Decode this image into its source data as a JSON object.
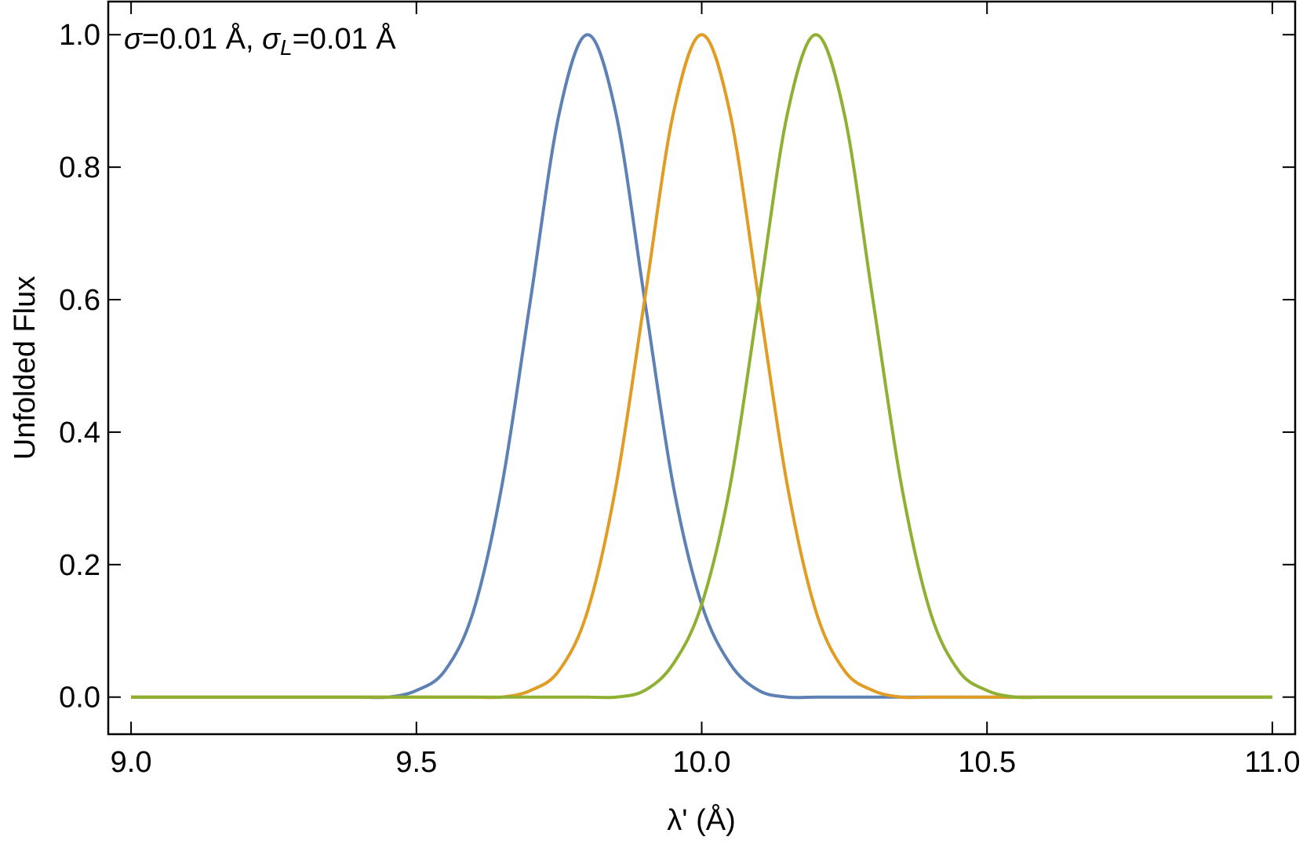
{
  "chart_data": {
    "type": "line",
    "xlabel": "λ' (Å)",
    "ylabel": "Unfolded Flux",
    "annotation": [
      "σ",
      "=0.01 Å, ",
      "σ",
      "L",
      "=0.01 Å"
    ],
    "x": [
      9.0,
      9.05,
      9.1,
      9.15,
      9.2,
      9.25,
      9.3,
      9.35,
      9.4,
      9.45,
      9.5,
      9.55,
      9.6,
      9.65,
      9.7,
      9.75,
      9.8,
      9.85,
      9.9,
      9.95,
      10.0,
      10.05,
      10.1,
      10.15,
      10.2,
      10.25,
      10.3,
      10.35,
      10.4,
      10.45,
      10.5,
      10.55,
      10.6,
      10.65,
      10.7,
      10.75,
      10.8,
      10.85,
      10.9,
      10.95,
      11.0
    ],
    "series": [
      {
        "color": "#5e81b5",
        "values": [
          0,
          0,
          0,
          0,
          0,
          0,
          0,
          0,
          0,
          0,
          0.01,
          0.04,
          0.13,
          0.32,
          0.6,
          0.88,
          1,
          0.88,
          0.6,
          0.32,
          0.14,
          0.05,
          0.01,
          0,
          0,
          0,
          0,
          0,
          0,
          0,
          0,
          0,
          0,
          0,
          0,
          0,
          0,
          0,
          0,
          0,
          0
        ]
      },
      {
        "color": "#e19c24",
        "values": [
          0,
          0,
          0,
          0,
          0,
          0,
          0,
          0,
          0,
          0,
          0,
          0,
          0,
          0,
          0.01,
          0.04,
          0.13,
          0.32,
          0.6,
          0.88,
          1,
          0.88,
          0.6,
          0.32,
          0.13,
          0.04,
          0.01,
          0,
          0,
          0,
          0,
          0,
          0,
          0,
          0,
          0,
          0,
          0,
          0,
          0,
          0
        ]
      },
      {
        "color": "#8fb032",
        "values": [
          0,
          0,
          0,
          0,
          0,
          0,
          0,
          0,
          0,
          0,
          0,
          0,
          0,
          0,
          0,
          0,
          0,
          0,
          0.01,
          0.05,
          0.14,
          0.32,
          0.6,
          0.88,
          1,
          0.88,
          0.6,
          0.32,
          0.13,
          0.04,
          0.01,
          0,
          0,
          0,
          0,
          0,
          0,
          0,
          0,
          0,
          0
        ]
      }
    ],
    "xlim": [
      8.96,
      11.04
    ],
    "ylim": [
      -0.056,
      1.05
    ],
    "xticks": [
      {
        "value": 9,
        "label": "9.0"
      },
      9.5,
      {
        "value": 10,
        "label": "10.0"
      },
      10.5,
      {
        "value": 11,
        "label": "11.0"
      }
    ],
    "yticks": [
      {
        "value": 0,
        "label": "0.0"
      },
      0.2,
      0.4,
      0.6,
      0.8,
      {
        "value": 1,
        "label": "1.0"
      }
    ]
  }
}
